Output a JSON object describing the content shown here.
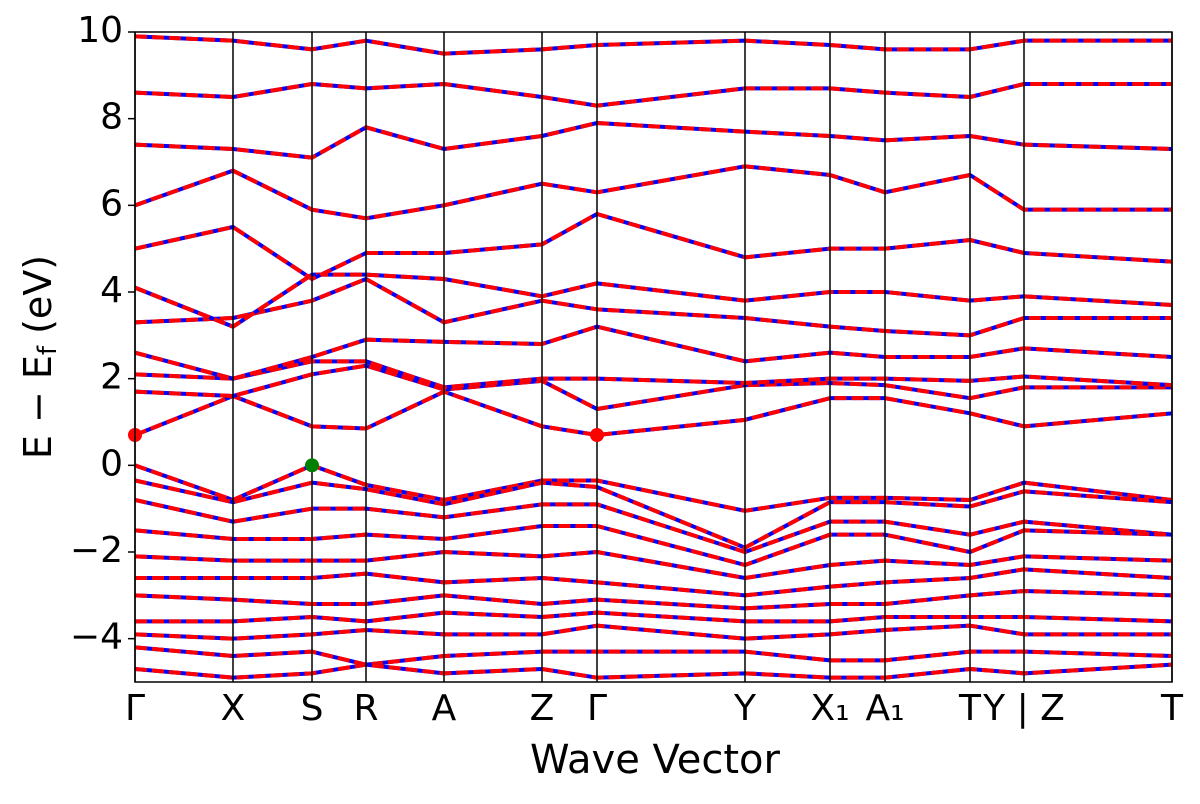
{
  "chart_data": {
    "type": "line",
    "xlabel": "Wave Vector",
    "ylabel": [
      "E − E",
      "f",
      " (eV)"
    ],
    "x": [
      0,
      0.98,
      1.77,
      2.31,
      3.09,
      4.07,
      4.62,
      6.1,
      6.95,
      7.5,
      8.35,
      8.89,
      10.37
    ],
    "xlim": [
      0,
      10.37
    ],
    "xticks": [
      {
        "value": 0,
        "label": "Γ"
      },
      {
        "value": 0.98,
        "label": "X"
      },
      {
        "value": 1.77,
        "label": "S"
      },
      {
        "value": 2.31,
        "label": "R"
      },
      {
        "value": 3.09,
        "label": "A"
      },
      {
        "value": 4.07,
        "label": "Z"
      },
      {
        "value": 4.62,
        "label": "Γ"
      },
      {
        "value": 6.1,
        "label": "Y"
      },
      {
        "value": 6.95,
        "label": "X₁"
      },
      {
        "value": 7.5,
        "label": "A₁"
      },
      {
        "value": 8.35,
        "label": "T"
      },
      {
        "value": 8.89,
        "label": "Y | Z"
      },
      {
        "value": 10.37,
        "label": "T"
      }
    ],
    "ylim": [
      -5,
      10
    ],
    "yticks": [
      {
        "value": -4,
        "label": "−4"
      },
      {
        "value": -2,
        "label": "−2"
      },
      0,
      2,
      4,
      6,
      8,
      10
    ],
    "line_colors": [
      "#0000ff",
      "#ff0000"
    ],
    "series": [
      {
        "values": [
          0.7,
          1.6,
          0.9,
          0.85,
          1.7,
          0.9,
          0.7,
          1.05,
          1.55,
          1.55,
          1.2,
          0.9,
          1.2
        ]
      },
      {
        "values": [
          1.7,
          1.6,
          2.1,
          2.3,
          1.75,
          1.95,
          1.3,
          1.85,
          1.9,
          1.85,
          1.55,
          1.8,
          1.8
        ]
      },
      {
        "values": [
          2.1,
          2.0,
          2.4,
          2.4,
          1.8,
          2.0,
          2.0,
          1.9,
          2.0,
          2.0,
          1.95,
          2.05,
          1.85
        ]
      },
      {
        "values": [
          2.6,
          2.0,
          2.5,
          2.9,
          2.85,
          2.8,
          3.2,
          2.4,
          2.6,
          2.5,
          2.5,
          2.7,
          2.5
        ]
      },
      {
        "values": [
          3.3,
          3.4,
          3.8,
          4.3,
          3.3,
          3.8,
          3.6,
          3.4,
          3.2,
          3.1,
          3.0,
          3.4,
          3.4
        ]
      },
      {
        "values": [
          4.1,
          3.2,
          4.4,
          4.4,
          4.3,
          3.9,
          4.2,
          3.8,
          4.0,
          4.0,
          3.8,
          3.9,
          3.7
        ]
      },
      {
        "values": [
          5.0,
          5.5,
          4.3,
          4.9,
          4.9,
          5.1,
          5.8,
          4.8,
          5.0,
          5.0,
          5.2,
          4.9,
          4.7
        ]
      },
      {
        "values": [
          6.0,
          6.8,
          5.9,
          5.7,
          6.0,
          6.5,
          6.3,
          6.9,
          6.7,
          6.3,
          6.7,
          5.9,
          5.9
        ]
      },
      {
        "values": [
          7.4,
          7.3,
          7.1,
          7.8,
          7.3,
          7.6,
          7.9,
          7.7,
          7.6,
          7.5,
          7.6,
          7.4,
          7.3
        ]
      },
      {
        "values": [
          8.6,
          8.5,
          8.8,
          8.7,
          8.8,
          8.5,
          8.3,
          8.7,
          8.7,
          8.6,
          8.5,
          8.8,
          8.8
        ]
      },
      {
        "values": [
          9.9,
          9.8,
          9.6,
          9.8,
          9.5,
          9.6,
          9.7,
          9.8,
          9.7,
          9.6,
          9.6,
          9.8,
          9.8
        ]
      },
      {
        "values": [
          0,
          -0.8,
          0,
          -0.45,
          -0.8,
          -0.35,
          -0.35,
          -1.05,
          -0.75,
          -0.75,
          -0.8,
          -0.4,
          -0.8
        ]
      },
      {
        "values": [
          -0.35,
          -0.85,
          -0.4,
          -0.55,
          -0.9,
          -0.4,
          -0.5,
          -1.9,
          -0.85,
          -0.85,
          -0.95,
          -0.6,
          -0.85
        ]
      },
      {
        "values": [
          -0.8,
          -1.3,
          -1.0,
          -1.0,
          -1.2,
          -0.9,
          -0.9,
          -2.0,
          -1.3,
          -1.3,
          -1.6,
          -1.3,
          -1.6
        ]
      },
      {
        "values": [
          -1.5,
          -1.7,
          -1.7,
          -1.6,
          -1.7,
          -1.4,
          -1.4,
          -2.3,
          -1.6,
          -1.6,
          -2.0,
          -1.5,
          -1.6
        ]
      },
      {
        "values": [
          -2.1,
          -2.2,
          -2.2,
          -2.2,
          -2.0,
          -2.1,
          -2.0,
          -2.6,
          -2.3,
          -2.2,
          -2.3,
          -2.1,
          -2.2
        ]
      },
      {
        "values": [
          -2.6,
          -2.6,
          -2.6,
          -2.5,
          -2.7,
          -2.6,
          -2.7,
          -3.0,
          -2.8,
          -2.7,
          -2.6,
          -2.4,
          -2.6
        ]
      },
      {
        "values": [
          -3.0,
          -3.1,
          -3.2,
          -3.2,
          -3.0,
          -3.2,
          -3.1,
          -3.3,
          -3.2,
          -3.2,
          -3.0,
          -2.9,
          -3.0
        ]
      },
      {
        "values": [
          -3.6,
          -3.6,
          -3.5,
          -3.6,
          -3.4,
          -3.5,
          -3.4,
          -3.6,
          -3.6,
          -3.5,
          -3.5,
          -3.5,
          -3.6
        ]
      },
      {
        "values": [
          -3.9,
          -4.0,
          -3.9,
          -3.8,
          -3.9,
          -3.9,
          -3.7,
          -4.0,
          -3.9,
          -3.8,
          -3.7,
          -3.9,
          -3.9
        ]
      },
      {
        "values": [
          -4.2,
          -4.4,
          -4.3,
          -4.6,
          -4.4,
          -4.3,
          -4.3,
          -4.3,
          -4.5,
          -4.5,
          -4.3,
          -4.3,
          -4.4
        ]
      },
      {
        "values": [
          -4.7,
          -4.9,
          -4.8,
          -4.6,
          -4.8,
          -4.7,
          -4.9,
          -4.8,
          -4.9,
          -4.9,
          -4.7,
          -4.8,
          -4.6
        ]
      }
    ],
    "points": [
      {
        "x": 0,
        "y": 0.7,
        "color": "#ff0000"
      },
      {
        "x": 4.62,
        "y": 0.7,
        "color": "#ff0000"
      },
      {
        "x": 1.77,
        "y": 0,
        "color": "#008000"
      }
    ]
  }
}
